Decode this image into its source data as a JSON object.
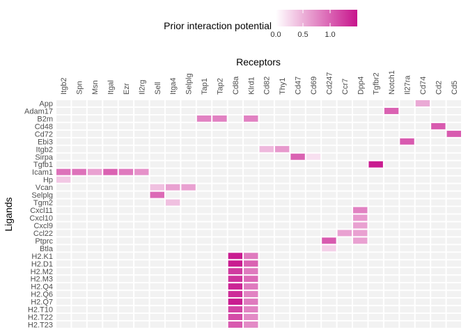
{
  "chart_data": {
    "type": "heatmap",
    "xlabel": "Receptors",
    "ylabel": "Ligands",
    "legend": {
      "title": "Prior interaction potential",
      "ticks": [
        "0.0",
        "0.5",
        "1.0"
      ],
      "tick_values": [
        0.0,
        0.5,
        1.0
      ],
      "range": [
        0,
        1.5
      ],
      "position": "top"
    },
    "color_low": "#ffffff",
    "color_high": "#c7148c",
    "missing_color": "#f2f2f2",
    "x": [
      "Itgb2",
      "Spn",
      "Msn",
      "Itgal",
      "Ezr",
      "Il2rg",
      "Sell",
      "Itga4",
      "Selplg",
      "Tap1",
      "Tap2",
      "Cd8a",
      "Klrd1",
      "Cd82",
      "Thy1",
      "Cd47",
      "Cd69",
      "Cd247",
      "Ccr7",
      "Dpp4",
      "Tgfbr2",
      "Notch1",
      "Il27ra",
      "Cd74",
      "Cd2",
      "Cd5"
    ],
    "y": [
      "App",
      "Adam17",
      "B2m",
      "Cd48",
      "Cd72",
      "Ebi3",
      "Itgb2",
      "Sirpa",
      "Tgfb1",
      "Icam1",
      "Hp",
      "Vcan",
      "Selplg",
      "Tgm2",
      "Cxcl11",
      "Cxcl10",
      "Cxcl9",
      "Ccl22",
      "Ptprc",
      "Btla",
      "H2.K1",
      "H2.D1",
      "H2.M2",
      "H2.M3",
      "H2.Q4",
      "H2.Q6",
      "H2.Q7",
      "H2.T10",
      "H2.T22",
      "H2.T23"
    ],
    "values": [
      [
        "App",
        "Cd74",
        0.55
      ],
      [
        "Adam17",
        "Notch1",
        1.0
      ],
      [
        "B2m",
        "Tap1",
        0.8
      ],
      [
        "B2m",
        "Tap2",
        0.8
      ],
      [
        "B2m",
        "Klrd1",
        0.8
      ],
      [
        "Cd48",
        "Cd2",
        1.05
      ],
      [
        "Cd72",
        "Cd5",
        1.05
      ],
      [
        "Ebi3",
        "Il27ra",
        1.05
      ],
      [
        "Itgb2",
        "Cd82",
        0.45
      ],
      [
        "Itgb2",
        "Thy1",
        0.65
      ],
      [
        "Sirpa",
        "Cd47",
        1.0
      ],
      [
        "Sirpa",
        "Cd69",
        0.2
      ],
      [
        "Tgfb1",
        "Tgfbr2",
        1.45
      ],
      [
        "Icam1",
        "Itgb2",
        0.9
      ],
      [
        "Icam1",
        "Spn",
        0.9
      ],
      [
        "Icam1",
        "Msn",
        0.6
      ],
      [
        "Icam1",
        "Itgal",
        1.0
      ],
      [
        "Icam1",
        "Ezr",
        0.85
      ],
      [
        "Icam1",
        "Il2rg",
        0.7
      ],
      [
        "Hp",
        "Itgb2",
        0.35
      ],
      [
        "Vcan",
        "Sell",
        0.4
      ],
      [
        "Vcan",
        "Itga4",
        0.6
      ],
      [
        "Vcan",
        "Selplg",
        0.6
      ],
      [
        "Selplg",
        "Sell",
        0.95
      ],
      [
        "Tgm2",
        "Itga4",
        0.4
      ],
      [
        "Cxcl11",
        "Dpp4",
        0.8
      ],
      [
        "Cxcl10",
        "Dpp4",
        0.65
      ],
      [
        "Cxcl9",
        "Dpp4",
        0.6
      ],
      [
        "Ccl22",
        "Ccr7",
        0.6
      ],
      [
        "Ccl22",
        "Dpp4",
        0.6
      ],
      [
        "Ptprc",
        "Cd247",
        1.05
      ],
      [
        "Ptprc",
        "Dpp4",
        0.6
      ],
      [
        "Btla",
        "Cd247",
        0.3
      ],
      [
        "H2.K1",
        "Cd8a",
        1.45
      ],
      [
        "H2.K1",
        "Klrd1",
        0.85
      ],
      [
        "H2.D1",
        "Cd8a",
        1.45
      ],
      [
        "H2.D1",
        "Klrd1",
        1.0
      ],
      [
        "H2.M2",
        "Cd8a",
        1.25
      ],
      [
        "H2.M2",
        "Klrd1",
        0.85
      ],
      [
        "H2.M3",
        "Cd8a",
        1.3
      ],
      [
        "H2.M3",
        "Klrd1",
        0.95
      ],
      [
        "H2.Q4",
        "Cd8a",
        1.4
      ],
      [
        "H2.Q4",
        "Klrd1",
        0.85
      ],
      [
        "H2.Q6",
        "Cd8a",
        1.35
      ],
      [
        "H2.Q6",
        "Klrd1",
        0.8
      ],
      [
        "H2.Q7",
        "Cd8a",
        1.45
      ],
      [
        "H2.Q7",
        "Klrd1",
        0.85
      ],
      [
        "H2.T10",
        "Cd8a",
        1.2
      ],
      [
        "H2.T10",
        "Klrd1",
        0.8
      ],
      [
        "H2.T22",
        "Cd8a",
        1.15
      ],
      [
        "H2.T22",
        "Klrd1",
        0.75
      ],
      [
        "H2.T23",
        "Cd8a",
        1.05
      ],
      [
        "H2.T23",
        "Klrd1",
        0.75
      ]
    ]
  }
}
